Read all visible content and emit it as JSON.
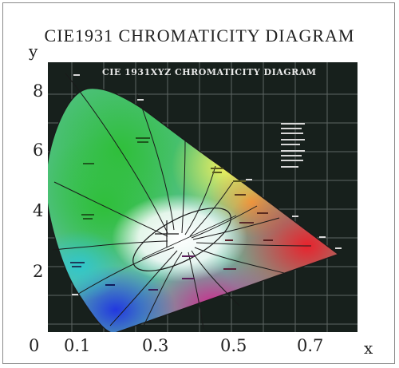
{
  "page": {
    "title": "CIE1931 CHROMATICITY DIAGRAM"
  },
  "chart_data": {
    "type": "scatter",
    "title": "CIE1931 CHROMATICITY DIAGRAM",
    "subtitle": "CIE 1931XYZ CHROMATICITY DIAGRAM",
    "xlabel": "x",
    "ylabel": "y",
    "x_ticks": [
      "0",
      "0.1",
      "0.3",
      "0.5",
      "0.7"
    ],
    "y_ticks": [
      "8",
      "6",
      "4",
      "2"
    ],
    "xlim": [
      0.0,
      0.8
    ],
    "ylim": [
      0.0,
      0.9
    ],
    "spectral_locus": [
      {
        "x": 0.175,
        "y": 0.005
      },
      {
        "x": 0.15,
        "y": 0.025
      },
      {
        "x": 0.115,
        "y": 0.085
      },
      {
        "x": 0.06,
        "y": 0.2
      },
      {
        "x": 0.015,
        "y": 0.4
      },
      {
        "x": 0.008,
        "y": 0.54
      },
      {
        "x": 0.04,
        "y": 0.7
      },
      {
        "x": 0.09,
        "y": 0.805
      },
      {
        "x": 0.15,
        "y": 0.81
      },
      {
        "x": 0.23,
        "y": 0.76
      },
      {
        "x": 0.3,
        "y": 0.69
      },
      {
        "x": 0.38,
        "y": 0.61
      },
      {
        "x": 0.48,
        "y": 0.515
      },
      {
        "x": 0.6,
        "y": 0.395
      },
      {
        "x": 0.73,
        "y": 0.265
      }
    ],
    "white_point": {
      "x": 0.31,
      "y": 0.32
    },
    "grid": true,
    "colors": {
      "panel": "#17201c",
      "green": "#27b43a",
      "yellow": "#f3f05a",
      "red": "#e8232d",
      "blue": "#2b3fd8",
      "magenta": "#c8208a",
      "white": "#ffffff"
    }
  }
}
